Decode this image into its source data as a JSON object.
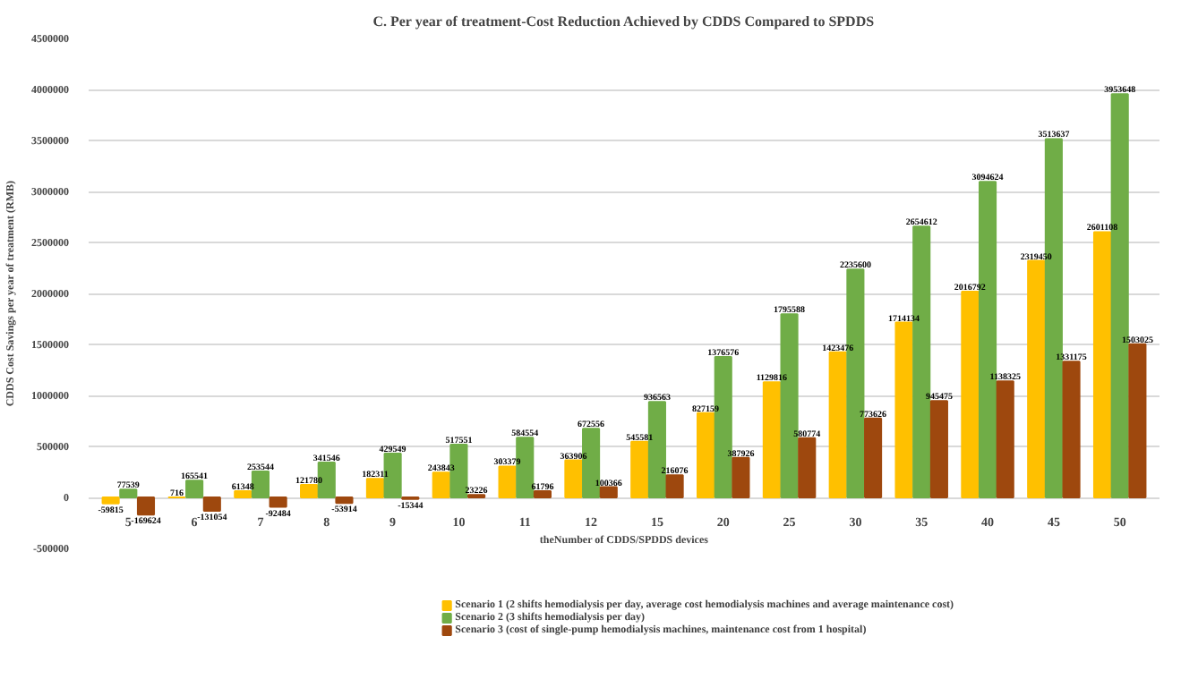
{
  "chart_data": {
    "type": "bar",
    "title": "C. Per year of treatment-Cost Reduction Achieved by CDDS Compared to SPDDS",
    "xlabel": "theNumber of CDDS/SPDDS devices",
    "ylabel": "CDDS Cost Savings per year of treatment (RMB)",
    "categories": [
      "5",
      "6",
      "7",
      "8",
      "9",
      "10",
      "11",
      "12",
      "15",
      "20",
      "25",
      "30",
      "35",
      "40",
      "45",
      "50"
    ],
    "series": [
      {
        "name": "Scenario 1 (2 shifts hemodialysis per day, average cost hemodialysis machines and average maintenance cost)",
        "color": "#ffc000",
        "values": [
          -59815,
          716,
          61348,
          121780,
          182311,
          243843,
          303379,
          363906,
          545581,
          827159,
          1129816,
          1423476,
          1714134,
          2016792,
          2319450,
          2601108
        ]
      },
      {
        "name": "Scenario 2 (3 shifts hemodialysis per day)",
        "color": "#70ad47",
        "values": [
          77539,
          165541,
          253544,
          341546,
          429549,
          517551,
          584554,
          672556,
          936563,
          1376576,
          1795588,
          2235600,
          2654612,
          3094624,
          3513637,
          3953648
        ]
      },
      {
        "name": "Scenario 3 (cost of single-pump hemodialysis machines, maintenance cost from 1 hospital)",
        "color": "#9e480e",
        "values": [
          -169624,
          -131054,
          -92484,
          -53914,
          -15344,
          23226,
          61796,
          100366,
          216076,
          387926,
          580774,
          773626,
          945475,
          1138325,
          1331175,
          1503025
        ]
      }
    ],
    "ylim": [
      -500000,
      4500000
    ],
    "yticks": [
      -500000,
      0,
      500000,
      1000000,
      1500000,
      2000000,
      2500000,
      3000000,
      3500000,
      4000000,
      4500000
    ],
    "grid": "y",
    "legend": "bottom",
    "data_labels": true
  }
}
